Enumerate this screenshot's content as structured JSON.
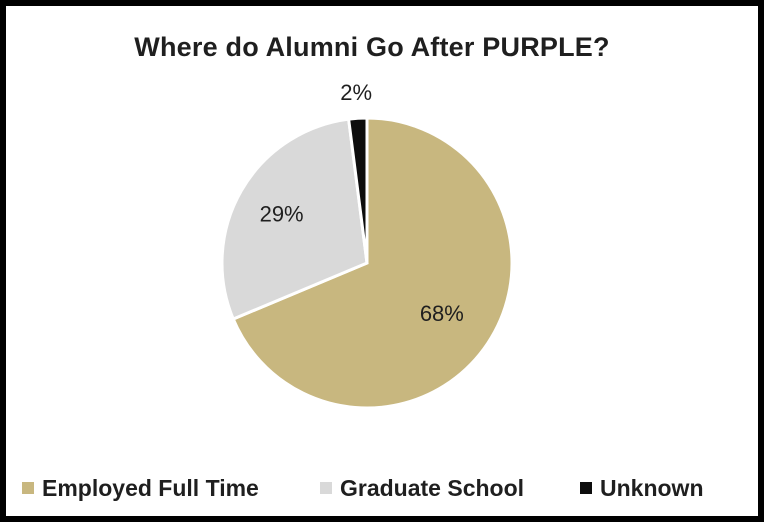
{
  "chart_data": {
    "type": "pie",
    "title": "Where do Alumni Go After PURPLE?",
    "categories": [
      "Employed Full Time",
      "Graduate School",
      "Unknown"
    ],
    "values": [
      68,
      29,
      2
    ],
    "labels": [
      "68%",
      "29%",
      "2%"
    ],
    "colors": [
      "#c8b77f",
      "#d9d9d9",
      "#0d0d0d"
    ],
    "legend_position": "bottom"
  }
}
